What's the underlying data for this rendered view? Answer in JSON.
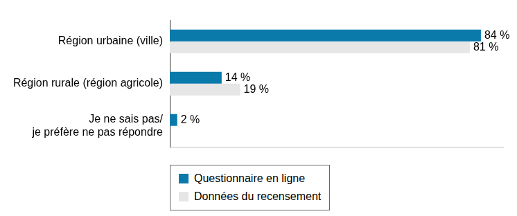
{
  "chart_data": {
    "type": "bar",
    "orientation": "horizontal",
    "categories": [
      "Région urbaine (ville)",
      "Région rurale (région agricole)",
      [
        "Je ne sais pas/",
        "je préfère ne pas répondre"
      ]
    ],
    "series": [
      {
        "name": "Questionnaire en ligne",
        "color": "#0a7aab",
        "values": [
          84,
          14,
          2
        ],
        "value_labels": [
          "84 %",
          "14 %",
          "2 %"
        ]
      },
      {
        "name": "Données du recensement",
        "color": "#e6e6e6",
        "values": [
          81,
          19,
          null
        ],
        "value_labels": [
          "81 %",
          "19 %",
          null
        ]
      }
    ],
    "xlim": [
      0,
      90
    ],
    "grid": false,
    "legend": "bottom",
    "data_labels": true,
    "tick_labels": "y"
  }
}
